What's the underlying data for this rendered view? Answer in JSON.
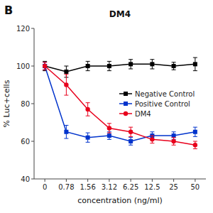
{
  "chart_data": {
    "type": "line",
    "title": "DM4",
    "annotations": [
      "B"
    ],
    "x_label": "concentration (ng/ml)",
    "y_label": "% Luc+cells",
    "categories": [
      "0",
      "0.78",
      "1.56",
      "3.12",
      "6.25",
      "12.5",
      "25",
      "50"
    ],
    "series": [
      {
        "name": "Negative Control",
        "color": "#000000",
        "marker": "square",
        "values": [
          100,
          97,
          100,
          100,
          101,
          101,
          100,
          101
        ],
        "errors": [
          2.5,
          3.0,
          2.5,
          2.5,
          2.5,
          2.5,
          2.0,
          3.5
        ]
      },
      {
        "name": "Positive Control",
        "color": "#0033cc",
        "marker": "square",
        "values": [
          100,
          65,
          62,
          63,
          60,
          63,
          63,
          65
        ],
        "errors": [
          2.0,
          3.5,
          2.5,
          2.0,
          2.0,
          2.0,
          2.0,
          2.5
        ]
      },
      {
        "name": "DM4",
        "color": "#e8001c",
        "marker": "circle",
        "values": [
          100,
          90,
          77,
          67,
          65,
          61,
          60,
          58
        ],
        "errors": [
          2.0,
          5.5,
          3.5,
          2.5,
          2.5,
          2.0,
          2.0,
          2.0
        ]
      }
    ],
    "ylim": [
      40,
      120
    ],
    "yticks": [
      40,
      60,
      80,
      100,
      120
    ],
    "grid": false,
    "legend": "right"
  }
}
